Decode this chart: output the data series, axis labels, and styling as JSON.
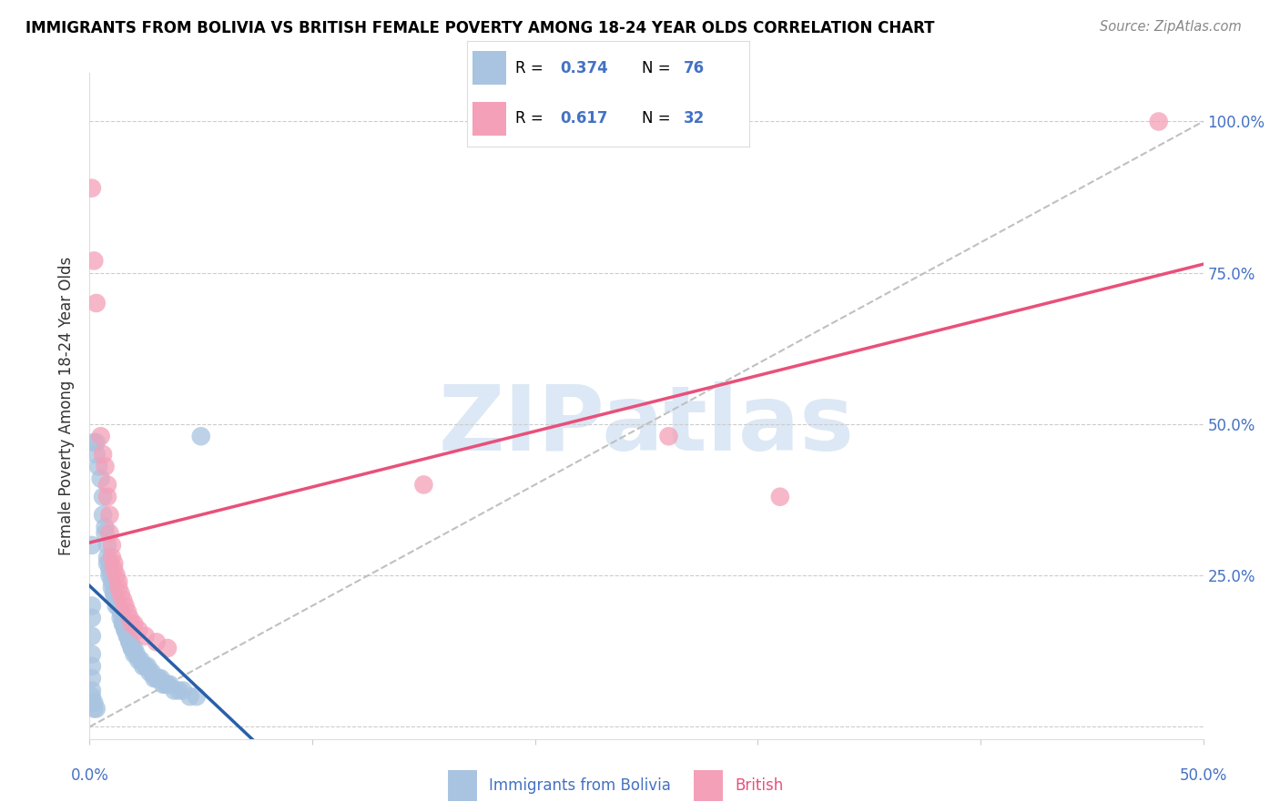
{
  "title": "IMMIGRANTS FROM BOLIVIA VS BRITISH FEMALE POVERTY AMONG 18-24 YEAR OLDS CORRELATION CHART",
  "source": "Source: ZipAtlas.com",
  "ylabel": "Female Poverty Among 18-24 Year Olds",
  "xlim": [
    0.0,
    0.5
  ],
  "ylim": [
    -0.02,
    1.08
  ],
  "y_ticks": [
    0.0,
    0.25,
    0.5,
    0.75,
    1.0
  ],
  "y_tick_labels": [
    "",
    "25.0%",
    "50.0%",
    "75.0%",
    "100.0%"
  ],
  "color_bolivia": "#a8c4e0",
  "color_british": "#f4a0b8",
  "trendline_bolivia_color": "#2860a8",
  "trendline_british_color": "#e8507a",
  "trendline_dashed_color": "#c0c0c0",
  "watermark": "ZIPatlas",
  "watermark_color": "#dce8f5",
  "bolivia_x": [
    0.002,
    0.003,
    0.004,
    0.005,
    0.006,
    0.006,
    0.007,
    0.007,
    0.008,
    0.008,
    0.008,
    0.009,
    0.009,
    0.009,
    0.01,
    0.01,
    0.01,
    0.011,
    0.011,
    0.011,
    0.012,
    0.012,
    0.012,
    0.013,
    0.013,
    0.014,
    0.014,
    0.015,
    0.015,
    0.015,
    0.016,
    0.016,
    0.017,
    0.017,
    0.018,
    0.018,
    0.019,
    0.019,
    0.02,
    0.02,
    0.021,
    0.022,
    0.023,
    0.024,
    0.025,
    0.026,
    0.027,
    0.028,
    0.029,
    0.03,
    0.031,
    0.032,
    0.033,
    0.034,
    0.035,
    0.036,
    0.038,
    0.04,
    0.042,
    0.045,
    0.048,
    0.05,
    0.003,
    0.001,
    0.001,
    0.001,
    0.001,
    0.001,
    0.001,
    0.001,
    0.001,
    0.001,
    0.001,
    0.002,
    0.002,
    0.003
  ],
  "bolivia_y": [
    0.47,
    0.47,
    0.43,
    0.41,
    0.38,
    0.35,
    0.33,
    0.32,
    0.3,
    0.28,
    0.27,
    0.27,
    0.26,
    0.25,
    0.25,
    0.24,
    0.23,
    0.23,
    0.22,
    0.22,
    0.21,
    0.21,
    0.2,
    0.2,
    0.2,
    0.19,
    0.18,
    0.18,
    0.17,
    0.17,
    0.16,
    0.16,
    0.15,
    0.15,
    0.14,
    0.14,
    0.13,
    0.13,
    0.13,
    0.12,
    0.12,
    0.11,
    0.11,
    0.1,
    0.1,
    0.1,
    0.09,
    0.09,
    0.08,
    0.08,
    0.08,
    0.08,
    0.07,
    0.07,
    0.07,
    0.07,
    0.06,
    0.06,
    0.06,
    0.05,
    0.05,
    0.48,
    0.45,
    0.3,
    0.2,
    0.18,
    0.15,
    0.12,
    0.1,
    0.08,
    0.06,
    0.05,
    0.04,
    0.04,
    0.03,
    0.03
  ],
  "british_x": [
    0.001,
    0.002,
    0.003,
    0.005,
    0.006,
    0.007,
    0.008,
    0.008,
    0.009,
    0.009,
    0.01,
    0.01,
    0.011,
    0.011,
    0.012,
    0.013,
    0.013,
    0.014,
    0.015,
    0.016,
    0.017,
    0.018,
    0.019,
    0.02,
    0.022,
    0.025,
    0.03,
    0.035,
    0.15,
    0.26,
    0.31,
    0.48
  ],
  "british_y": [
    0.89,
    0.77,
    0.7,
    0.48,
    0.45,
    0.43,
    0.4,
    0.38,
    0.35,
    0.32,
    0.3,
    0.28,
    0.27,
    0.26,
    0.25,
    0.24,
    0.23,
    0.22,
    0.21,
    0.2,
    0.19,
    0.18,
    0.17,
    0.17,
    0.16,
    0.15,
    0.14,
    0.13,
    0.4,
    0.48,
    0.38,
    1.0
  ]
}
